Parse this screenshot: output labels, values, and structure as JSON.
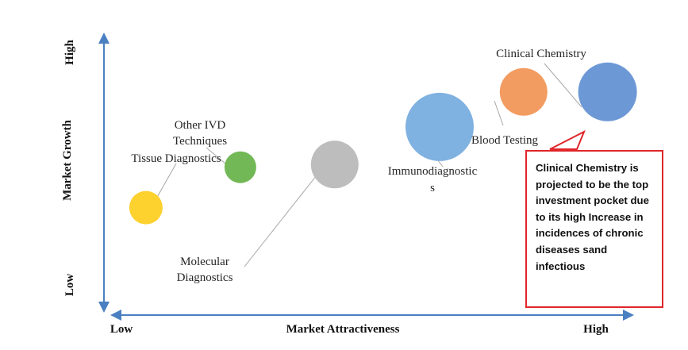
{
  "chart_data": {
    "type": "scatter",
    "title": "",
    "xlabel": "Market Attractiveness",
    "ylabel": "Market Growth",
    "x_ticks": [
      "Low",
      "High"
    ],
    "y_ticks": [
      "Low",
      "High"
    ],
    "xlim": [
      0,
      100
    ],
    "ylim": [
      0,
      100
    ],
    "grid": false,
    "legend": "none",
    "points": [
      {
        "label": "Tissue Diagnostics",
        "x": 8,
        "y": 37,
        "size": 21,
        "color": "#fdd12e"
      },
      {
        "label": "Other IVD Techniques",
        "x": 26,
        "y": 52,
        "size": 20,
        "color": "#72b857"
      },
      {
        "label": "Molecular Diagnostics",
        "x": 44,
        "y": 53,
        "size": 30,
        "color": "#bdbdbd"
      },
      {
        "label": "Immunodiagnostics",
        "x": 64,
        "y": 67,
        "size": 43,
        "color": "#7fb1e1"
      },
      {
        "label": "Blood Testing",
        "x": 80,
        "y": 80,
        "size": 30,
        "color": "#f39c61"
      },
      {
        "label": "Clinical Chemistry",
        "x": 96,
        "y": 80,
        "size": 37,
        "color": "#6d98d6"
      }
    ],
    "annotation": "Clinical Chemistry is projected to be the top investment pocket due to its high Increase in incidences of chronic diseases sand infectious"
  },
  "labels": {
    "tissue": [
      "Tissue Diagnostics"
    ],
    "other_ivd": [
      "Other IVD",
      "Techniques"
    ],
    "molecular": [
      "Molecular",
      "Diagnostics"
    ],
    "immuno": [
      "Immunodiagnostic",
      "s"
    ],
    "blood": [
      "Blood Testing"
    ],
    "clinical": [
      "Clinical Chemistry"
    ]
  },
  "colors": {
    "axis": "#4a7fc1",
    "leader": "#a6a6a6",
    "callout_border": "#e0262a"
  }
}
